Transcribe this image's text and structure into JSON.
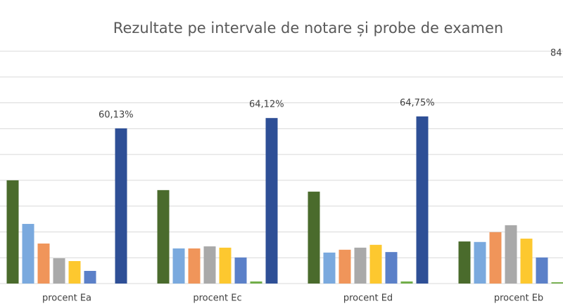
{
  "chart_data": {
    "type": "bar",
    "title": "Rezultate pe intervale de notare și probe de examen",
    "categories": [
      "procent Ea",
      "procent Ec",
      "procent Ed",
      "procent Eb"
    ],
    "series": [
      {
        "color": "#4a6b2c",
        "values": [
          40.0,
          36.2,
          35.6,
          16.3
        ]
      },
      {
        "color": "#7aa9de",
        "values": [
          23.1,
          13.6,
          12.0,
          16.1
        ]
      },
      {
        "color": "#f0955a",
        "values": [
          15.5,
          13.6,
          13.1,
          19.9
        ]
      },
      {
        "color": "#a9a9a9",
        "values": [
          9.8,
          14.4,
          13.9,
          22.6
        ]
      },
      {
        "color": "#fdc82f",
        "values": [
          8.7,
          13.9,
          15.0,
          17.4
        ]
      },
      {
        "color": "#5b80c8",
        "values": [
          4.9,
          10.1,
          12.2,
          10.1
        ]
      },
      {
        "color": "#70ad47",
        "values": [
          0,
          0.8,
          0.8,
          0.5
        ]
      },
      {
        "color": "#2e4f96",
        "values": [
          60.13,
          64.12,
          64.75,
          84
        ],
        "value_labels": [
          "60,13%",
          "64,12%",
          "64,75%",
          "84"
        ]
      }
    ],
    "ylim": [
      0,
      90
    ],
    "yticks": [
      0,
      10,
      20,
      30,
      40,
      50,
      60,
      70,
      80,
      90
    ],
    "grid": true
  }
}
